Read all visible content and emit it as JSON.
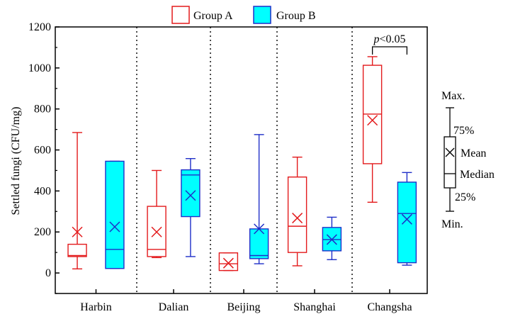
{
  "colors": {
    "group_a": "#e31a1c",
    "group_b_stroke": "#1f2fc8",
    "group_b_fill": "#00ffff",
    "axis": "#000000",
    "separator": "#000000"
  },
  "chart_data": {
    "type": "box",
    "ylabel": "Settled fungi (CFU/mg)",
    "xlabel": "",
    "ylim": [
      -100,
      1200
    ],
    "yticks": [
      0,
      200,
      400,
      600,
      800,
      1000,
      1200
    ],
    "categories": [
      "Harbin",
      "Dalian",
      "Beijing",
      "Shanghai",
      "Changsha"
    ],
    "legend": {
      "position": "top",
      "items": [
        "Group A",
        "Group B"
      ]
    },
    "series": [
      {
        "name": "Group A",
        "style": "outline",
        "boxes": [
          {
            "min": 20,
            "q1": 80,
            "median": 85,
            "q3": 140,
            "max": 685,
            "mean": 200
          },
          {
            "min": 75,
            "q1": 80,
            "median": 115,
            "q3": 325,
            "max": 500,
            "mean": 200
          },
          {
            "min": 12,
            "q1": 12,
            "median": 45,
            "q3": 98,
            "max": 98,
            "mean": 48
          },
          {
            "min": 35,
            "q1": 100,
            "median": 228,
            "q3": 468,
            "max": 565,
            "mean": 268
          },
          {
            "min": 345,
            "q1": 533,
            "median": 775,
            "q3": 1013,
            "max": 1055,
            "mean": 745
          }
        ]
      },
      {
        "name": "Group B",
        "style": "filled",
        "boxes": [
          {
            "min": 22,
            "q1": 22,
            "median": 115,
            "q3": 545,
            "max": 545,
            "mean": 225
          },
          {
            "min": 80,
            "q1": 275,
            "median": 478,
            "q3": 503,
            "max": 558,
            "mean": 378
          },
          {
            "min": 45,
            "q1": 70,
            "median": 85,
            "q3": 215,
            "max": 675,
            "mean": 215
          },
          {
            "min": 65,
            "q1": 108,
            "median": 163,
            "q3": 222,
            "max": 272,
            "mean": 163
          },
          {
            "min": 38,
            "q1": 50,
            "median": 290,
            "q3": 443,
            "max": 490,
            "mean": 262
          }
        ]
      }
    ],
    "annotations": [
      {
        "text": "p<0.05",
        "category": "Changsha"
      }
    ],
    "key": {
      "max": "Max.",
      "q3": "75%",
      "mean": "Mean",
      "median": "Median",
      "q1": "25%",
      "min": "Min."
    }
  }
}
